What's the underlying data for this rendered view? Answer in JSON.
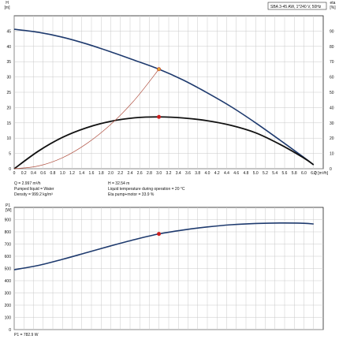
{
  "chart_data": [
    {
      "type": "line",
      "title": "SBA 3-45 AW, 1*240 V, 50Hz",
      "xlabel": "Q [m³/h]",
      "ylabel": "H\n[m]",
      "y2label": "eta\n[%]",
      "xlim": [
        0,
        6.4
      ],
      "ylim": [
        0,
        50
      ],
      "y2lim": [
        0,
        100
      ],
      "x_ticks": [
        "0",
        "0.2",
        "0.4",
        "0.6",
        "0.8",
        "1.0",
        "1.2",
        "1.4",
        "1.6",
        "1.8",
        "2.0",
        "2.2",
        "2.4",
        "2.6",
        "2.8",
        "3.0",
        "3.2",
        "3.4",
        "3.6",
        "3.8",
        "4.0",
        "4.2",
        "4.4",
        "4.6",
        "4.8",
        "5.0",
        "5.2",
        "5.4",
        "5.6",
        "5.8",
        "6.0",
        "6.2"
      ],
      "y_ticks": [
        "0",
        "5",
        "10",
        "15",
        "20",
        "25",
        "30",
        "35",
        "40",
        "45"
      ],
      "y2_ticks": [
        "0",
        "10",
        "20",
        "30",
        "40",
        "50",
        "60",
        "70",
        "80",
        "90"
      ],
      "grid": true,
      "series": [
        {
          "axis": "left",
          "color": "#1e3a6e",
          "x": [
            0,
            0.5,
            1.0,
            1.5,
            2.0,
            2.5,
            2.997,
            3.5,
            4.0,
            4.5,
            5.0,
            5.5,
            6.0,
            6.2
          ],
          "values": [
            45.6,
            44.6,
            43.0,
            40.8,
            38.2,
            35.4,
            32.54,
            29.0,
            24.8,
            20.2,
            15.0,
            9.4,
            3.7,
            1.3
          ]
        },
        {
          "axis": "right",
          "color": "#111111",
          "x": [
            0,
            0.5,
            1.0,
            1.5,
            2.0,
            2.5,
            2.997,
            3.5,
            4.0,
            4.5,
            5.0,
            5.5,
            6.0,
            6.2
          ],
          "values": [
            0,
            11.5,
            20.5,
            26.8,
            31.0,
            33.3,
            33.9,
            33.2,
            31.4,
            28.3,
            23.5,
            16.0,
            7.0,
            2.6
          ]
        },
        {
          "axis": "left",
          "color": "#b05040",
          "x": [
            0,
            0.5,
            1.0,
            1.5,
            2.0,
            2.5,
            2.997
          ],
          "values": [
            0,
            0.9,
            3.6,
            8.2,
            14.5,
            22.6,
            32.54
          ]
        }
      ],
      "points": [
        {
          "axis": "left",
          "x": 2.997,
          "y": 32.54,
          "color": "#e0a030",
          "stroke": "#c0392b"
        },
        {
          "axis": "right",
          "x": 2.997,
          "y": 33.9,
          "color": "#cc1f1f",
          "stroke": "#cc1f1f"
        }
      ],
      "info": [
        "Q = 2.997 m³/h",
        "Pumped liquid = Water",
        "Density = 999.2 kg/m³",
        "H = 32.54 m",
        "Liquid temperature during operation = 20 °C",
        "Eta pump+motor = 33.9 %"
      ]
    },
    {
      "type": "line",
      "ylabel": "P1\n[W]",
      "xlim": [
        0,
        6.4
      ],
      "ylim": [
        0,
        1000
      ],
      "y_ticks": [
        "0",
        "100",
        "200",
        "300",
        "400",
        "500",
        "600",
        "700",
        "800",
        "900"
      ],
      "grid": true,
      "series": [
        {
          "color": "#1e3a6e",
          "x": [
            0,
            0.5,
            1.0,
            1.5,
            2.0,
            2.5,
            2.997,
            3.5,
            4.0,
            4.5,
            5.0,
            5.5,
            6.0,
            6.2
          ],
          "values": [
            490,
            525,
            575,
            630,
            685,
            737,
            782.9,
            815,
            840,
            858,
            868,
            872,
            870,
            864
          ]
        }
      ],
      "points": [
        {
          "x": 2.997,
          "y": 782.9,
          "color": "#cc1f1f",
          "stroke": "#cc1f1f"
        }
      ],
      "footer": "P1 = 782.9 W"
    }
  ]
}
